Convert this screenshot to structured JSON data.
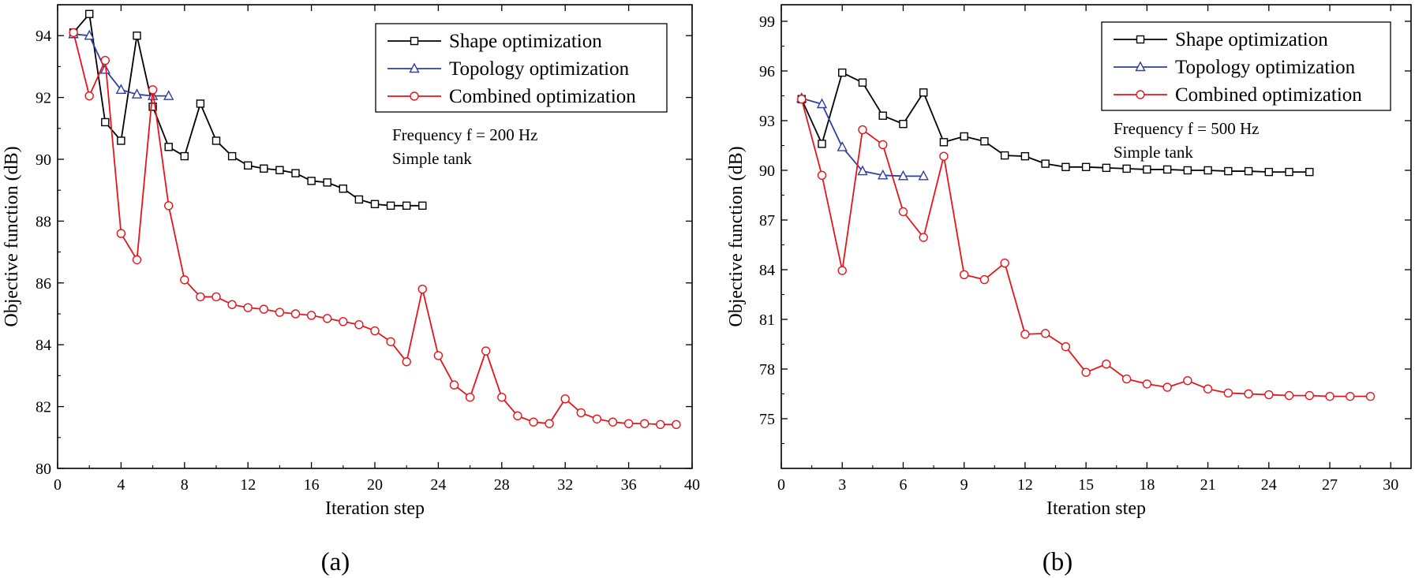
{
  "chart_data": [
    {
      "type": "line",
      "panel_label": "(a)",
      "xlabel": "Iteration step",
      "ylabel": "Objective function (dB)",
      "xlim": [
        0,
        40
      ],
      "ylim": [
        80,
        95
      ],
      "xticks": [
        0,
        4,
        8,
        12,
        16,
        20,
        24,
        28,
        32,
        36,
        40
      ],
      "yticks": [
        80,
        82,
        84,
        86,
        88,
        90,
        92,
        94
      ],
      "legend_position": "top-right",
      "annotation": [
        "Frequency f = 200 Hz",
        "Simple tank"
      ],
      "series": [
        {
          "name": "Shape optimization",
          "color": "#000000",
          "marker": "square",
          "x": [
            1,
            2,
            3,
            4,
            5,
            6,
            7,
            8,
            9,
            10,
            11,
            12,
            13,
            14,
            15,
            16,
            17,
            18,
            19,
            20,
            21,
            22,
            23
          ],
          "y": [
            94.1,
            94.7,
            91.2,
            90.6,
            94.0,
            91.7,
            90.4,
            90.1,
            91.8,
            90.6,
            90.1,
            89.8,
            89.7,
            89.65,
            89.55,
            89.3,
            89.25,
            89.05,
            88.7,
            88.55,
            88.5,
            88.5,
            88.5
          ]
        },
        {
          "name": "Topology optimization",
          "color": "#2e3f9e",
          "marker": "triangle",
          "x": [
            1,
            2,
            3,
            4,
            5,
            6,
            7
          ],
          "y": [
            94.05,
            94.0,
            92.9,
            92.25,
            92.1,
            92.05,
            92.05
          ]
        },
        {
          "name": "Combined optimization",
          "color": "#e4151b",
          "marker": "circle",
          "x": [
            1,
            2,
            3,
            4,
            5,
            6,
            7,
            8,
            9,
            10,
            11,
            12,
            13,
            14,
            15,
            16,
            17,
            18,
            19,
            20,
            21,
            22,
            23,
            24,
            25,
            26,
            27,
            28,
            29,
            30,
            31,
            32,
            33,
            34,
            35,
            36,
            37,
            38,
            39
          ],
          "y": [
            94.1,
            92.05,
            93.2,
            87.6,
            86.75,
            92.25,
            88.5,
            86.1,
            85.55,
            85.55,
            85.3,
            85.2,
            85.15,
            85.05,
            85.0,
            84.95,
            84.85,
            84.75,
            84.65,
            84.45,
            84.1,
            83.45,
            85.8,
            83.65,
            82.7,
            82.3,
            83.8,
            82.3,
            81.7,
            81.5,
            81.45,
            82.25,
            81.8,
            81.6,
            81.5,
            81.45,
            81.45,
            81.42,
            81.42
          ]
        }
      ]
    },
    {
      "type": "line",
      "panel_label": "(b)",
      "xlabel": "Iteration step",
      "ylabel": "Objective function (dB)",
      "xlim": [
        0,
        31
      ],
      "ylim": [
        72,
        100
      ],
      "xticks": [
        0,
        3,
        6,
        9,
        12,
        15,
        18,
        21,
        24,
        27,
        30
      ],
      "yticks": [
        75,
        78,
        81,
        84,
        87,
        90,
        93,
        96,
        99
      ],
      "legend_position": "top-right",
      "annotation": [
        "Frequency f = 500 Hz",
        "Simple tank"
      ],
      "series": [
        {
          "name": "Shape optimization",
          "color": "#000000",
          "marker": "square",
          "x": [
            1,
            2,
            3,
            4,
            5,
            6,
            7,
            8,
            9,
            10,
            11,
            12,
            13,
            14,
            15,
            16,
            17,
            18,
            19,
            20,
            21,
            22,
            23,
            24,
            25,
            26
          ],
          "y": [
            94.3,
            91.6,
            95.9,
            95.3,
            93.3,
            92.8,
            94.7,
            91.7,
            92.05,
            91.75,
            90.9,
            90.85,
            90.4,
            90.2,
            90.2,
            90.15,
            90.1,
            90.05,
            90.05,
            90.0,
            90.0,
            89.95,
            89.95,
            89.9,
            89.9,
            89.9
          ]
        },
        {
          "name": "Topology optimization",
          "color": "#2e3f9e",
          "marker": "triangle",
          "x": [
            1,
            2,
            3,
            4,
            5,
            6,
            7
          ],
          "y": [
            94.35,
            94.0,
            91.4,
            89.95,
            89.7,
            89.65,
            89.65
          ]
        },
        {
          "name": "Combined optimization",
          "color": "#e4151b",
          "marker": "circle",
          "x": [
            1,
            2,
            3,
            4,
            5,
            6,
            7,
            8,
            9,
            10,
            11,
            12,
            13,
            14,
            15,
            16,
            17,
            18,
            19,
            20,
            21,
            22,
            23,
            24,
            25,
            26,
            27,
            28,
            29
          ],
          "y": [
            94.3,
            89.7,
            83.95,
            92.45,
            91.55,
            87.5,
            85.95,
            90.85,
            83.7,
            83.4,
            84.4,
            80.1,
            80.15,
            79.35,
            77.8,
            78.3,
            77.4,
            77.1,
            76.9,
            77.3,
            76.8,
            76.55,
            76.5,
            76.45,
            76.4,
            76.4,
            76.35,
            76.35,
            76.35
          ]
        }
      ]
    }
  ]
}
